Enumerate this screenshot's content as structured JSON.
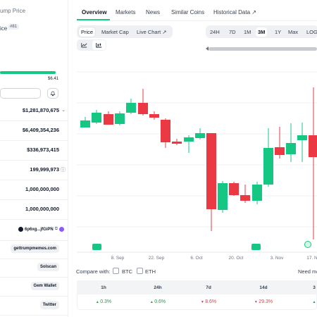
{
  "sidebar": {
    "title": "ump Price",
    "price_label": "ice",
    "rank": "#81",
    "range_low": "",
    "range_high": "$6.41",
    "range_fraction": 1.0,
    "converter_value": "",
    "stats": [
      {
        "value": "$1,281,870,675",
        "icon": "chevron-down-icon"
      },
      {
        "value": "$6,409,354,236",
        "icon": ""
      },
      {
        "value": "$336,973,415",
        "icon": ""
      },
      {
        "value": "199,999,973",
        "icon": "info-icon"
      },
      {
        "value": "1,000,000,000",
        "icon": ""
      },
      {
        "value": "1,000,000,000",
        "icon": ""
      }
    ],
    "contract": "6p6xg...jfGiPN",
    "links": [
      "gettrumpmemes.com",
      "Solscan",
      "Gem Wallet",
      "Twitter"
    ]
  },
  "tabs": [
    "Overview",
    "Markets",
    "News",
    "Similar Coins",
    "Historical Data"
  ],
  "chart_modes": [
    "Price",
    "Market Cap",
    "Live Chart"
  ],
  "timeframes": [
    "24H",
    "7D",
    "1M",
    "3M",
    "1Y",
    "Max",
    "LOG"
  ],
  "active_timeframe": "3M",
  "chart_data": {
    "type": "candlestick",
    "x_ticks": [
      "8. Sep",
      "22. Sep",
      "6. Oct",
      "20. Oct",
      "3. Nov",
      "17. N"
    ],
    "colors": {
      "up": "#16c784",
      "down": "#ea3943"
    }
  },
  "compare": {
    "label": "Compare with:",
    "options": [
      "BTC",
      "ETH"
    ],
    "need_more": "Need mo"
  },
  "performance": {
    "headers": [
      "1h",
      "24h",
      "7d",
      "14d",
      "3"
    ],
    "values": [
      {
        "text": "0.3%",
        "dir": "up"
      },
      {
        "text": "0.6%",
        "dir": "up"
      },
      {
        "text": "8.6%",
        "dir": "down"
      },
      {
        "text": "29.3%",
        "dir": "down"
      },
      {
        "text": "",
        "dir": "up"
      }
    ]
  }
}
